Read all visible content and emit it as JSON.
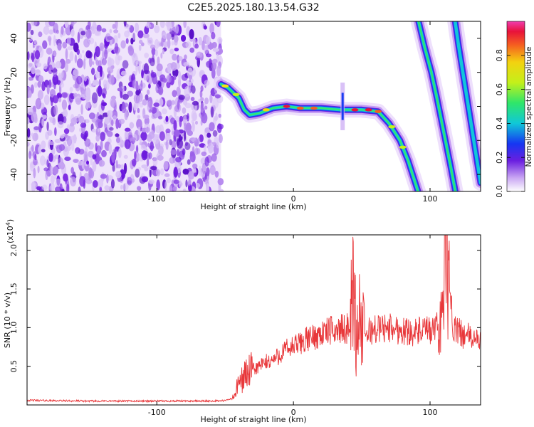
{
  "title": "C2E5.2025.180.13.54.G32",
  "chart_data": [
    {
      "type": "heatmap",
      "xlabel": "Height of straight line (km)",
      "ylabel": "Frequency (Hz)",
      "xlim": [
        -195,
        137
      ],
      "ylim": [
        -50,
        50
      ],
      "xticks": [
        -100,
        0,
        100
      ],
      "yticks": [
        -40,
        -20,
        0,
        20,
        40
      ],
      "colorbar": {
        "label": "Normalized spectral amplitude",
        "range": [
          0,
          1
        ],
        "ticks": [
          0.0,
          0.2,
          0.4,
          0.6,
          0.8
        ]
      },
      "noise_region_x": [
        -195,
        -53
      ],
      "main_track": [
        {
          "x": -53,
          "y": 13
        },
        {
          "x": -48,
          "y": 11
        },
        {
          "x": -44,
          "y": 8
        },
        {
          "x": -40,
          "y": 5
        },
        {
          "x": -36,
          "y": -2
        },
        {
          "x": -32,
          "y": -5
        },
        {
          "x": -25,
          "y": -4
        },
        {
          "x": -15,
          "y": -1
        },
        {
          "x": -5,
          "y": 0
        },
        {
          "x": 5,
          "y": -1
        },
        {
          "x": 20,
          "y": -1
        },
        {
          "x": 35,
          "y": -2
        },
        {
          "x": 50,
          "y": -2
        },
        {
          "x": 62,
          "y": -3
        },
        {
          "x": 70,
          "y": -10
        },
        {
          "x": 78,
          "y": -20
        },
        {
          "x": 84,
          "y": -32
        },
        {
          "x": 88,
          "y": -42
        },
        {
          "x": 92,
          "y": -52
        }
      ],
      "secondary_tracks": [
        [
          {
            "x": 91,
            "y": 52
          },
          {
            "x": 96,
            "y": 35
          },
          {
            "x": 101,
            "y": 20
          },
          {
            "x": 105,
            "y": 5
          },
          {
            "x": 110,
            "y": -15
          },
          {
            "x": 115,
            "y": -35
          },
          {
            "x": 119,
            "y": -52
          }
        ],
        [
          {
            "x": 118,
            "y": 52
          },
          {
            "x": 121,
            "y": 35
          },
          {
            "x": 125,
            "y": 15
          },
          {
            "x": 129,
            "y": -5
          },
          {
            "x": 133,
            "y": -25
          },
          {
            "x": 137,
            "y": -45
          }
        ]
      ]
    },
    {
      "type": "line",
      "xlabel": "Height of straight line (km)",
      "ylabel": "SNR (10 * v/v)",
      "y_multiplier": "(x10",
      "y_multiplier_exp": "4",
      "y_multiplier_close": ")",
      "xlim": [
        -195,
        137
      ],
      "ylim": [
        0,
        22000
      ],
      "xticks": [
        -100,
        0,
        100
      ],
      "yticks": [
        5000,
        10000,
        15000,
        20000
      ],
      "ytick_labels": [
        "0.5",
        "1.0",
        "1.5",
        "2.0"
      ],
      "color": "#e8373a",
      "series": [
        {
          "x": [
            -195,
            -150,
            -100,
            -60,
            -50,
            -44,
            -40,
            -35,
            -30,
            -25,
            -20,
            -15,
            -10,
            -5,
            0,
            5,
            10,
            15,
            20,
            25,
            30,
            35,
            40,
            42,
            44,
            46,
            48,
            50,
            52,
            55,
            60,
            65,
            70,
            75,
            80,
            85,
            90,
            95,
            100,
            105,
            108,
            110,
            112,
            114,
            116,
            120,
            125,
            130,
            137
          ],
          "values": [
            600,
            500,
            500,
            500,
            550,
            900,
            2800,
            4000,
            4500,
            5000,
            5500,
            5800,
            6500,
            7200,
            7500,
            8000,
            8500,
            8800,
            9200,
            9500,
            9700,
            9800,
            9900,
            12000,
            16000,
            8000,
            13000,
            9500,
            9000,
            9500,
            9800,
            9900,
            10000,
            9800,
            9600,
            9500,
            9400,
            9600,
            9500,
            10000,
            12000,
            18000,
            22000,
            15000,
            10000,
            9500,
            9000,
            8800,
            8000
          ]
        }
      ]
    }
  ]
}
